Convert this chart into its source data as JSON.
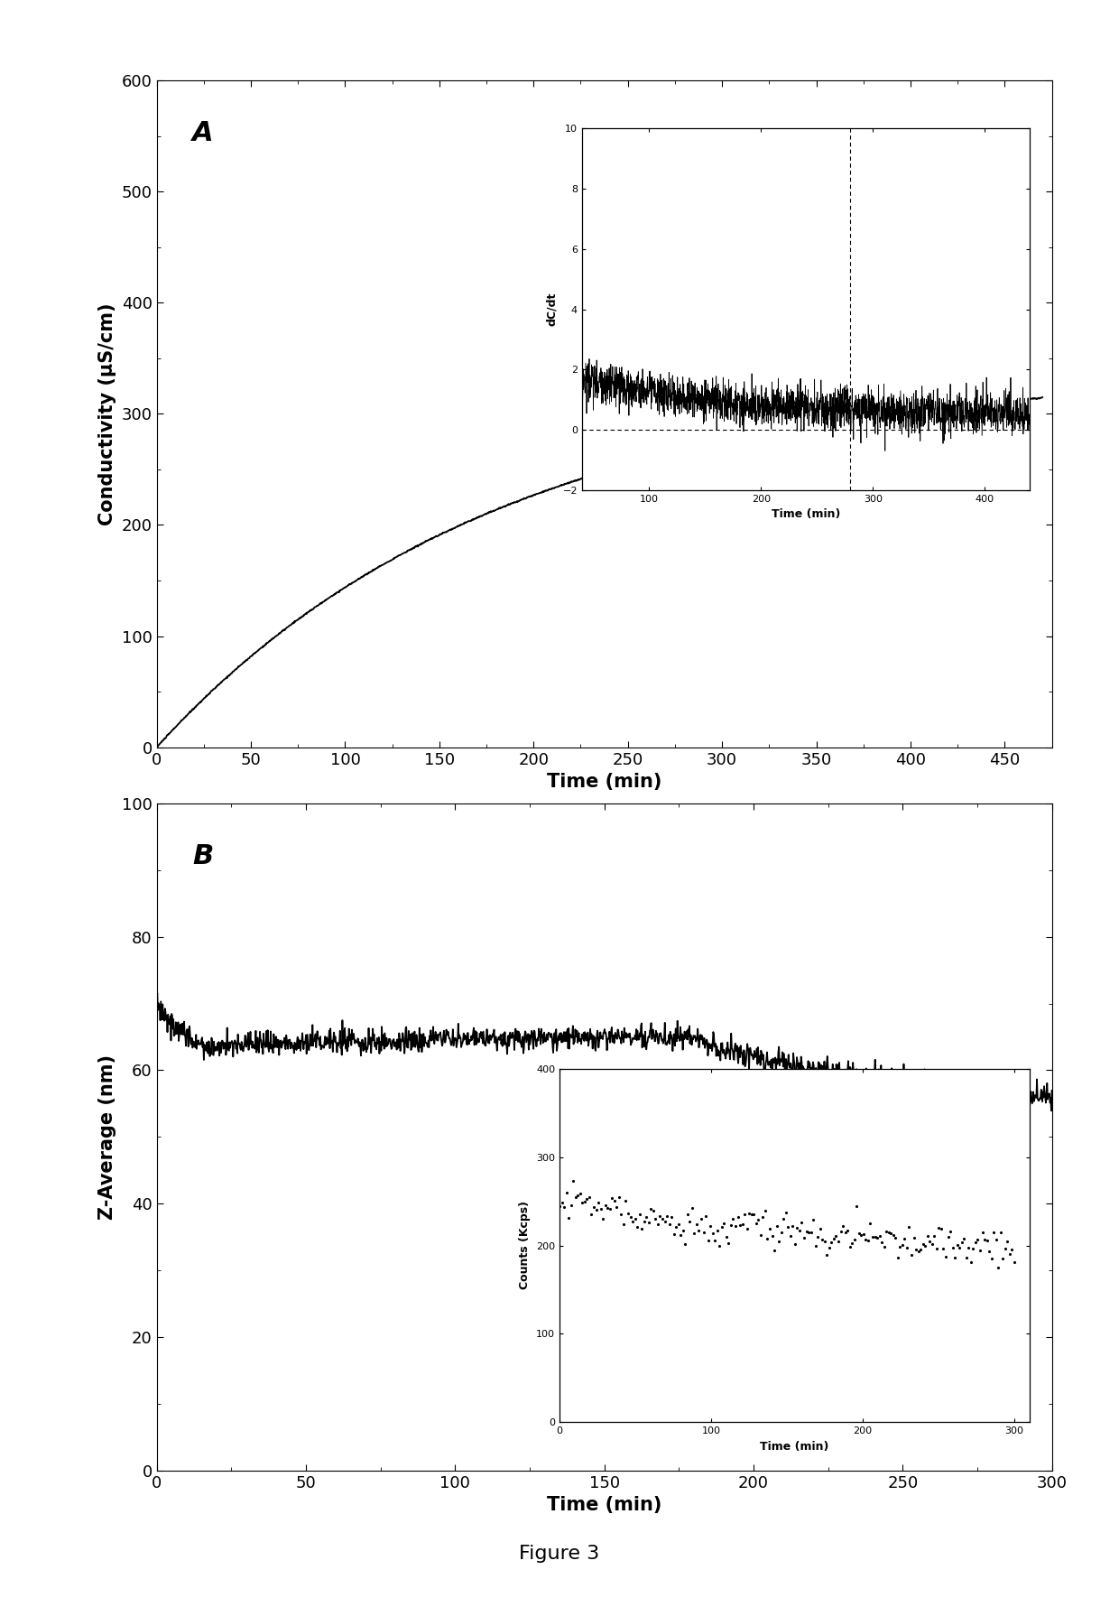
{
  "fig_width": 12.4,
  "fig_height": 17.8,
  "dpi": 100,
  "background_color": "#ffffff",
  "panel_A": {
    "label": "A",
    "xlabel": "Time (min)",
    "ylabel": "Conductivity (μS/cm)",
    "xlim": [
      0,
      475
    ],
    "ylim": [
      0,
      600
    ],
    "xticks": [
      0,
      50,
      100,
      150,
      200,
      250,
      300,
      350,
      400,
      450
    ],
    "yticks": [
      0,
      100,
      200,
      300,
      400,
      500,
      600
    ],
    "main_curve": {
      "x_start": 0,
      "x_end": 470,
      "n_points": 2000,
      "a": 340,
      "b": 0.0055,
      "noise_scale": 0.3
    },
    "inset": {
      "xlabel": "Time (min)",
      "ylabel": "dC/dt",
      "xlim": [
        40,
        440
      ],
      "ylim": [
        -2,
        10
      ],
      "xticks": [
        100,
        200,
        300,
        400
      ],
      "yticks": [
        -2,
        0,
        2,
        4,
        6,
        8,
        10
      ],
      "dashed_y": 0,
      "vline_x": 280,
      "curve": {
        "x_start": 40,
        "x_end": 440,
        "n_points": 2000,
        "decay_a": 1.2,
        "decay_b": 0.008,
        "noise_scale": 0.35
      }
    }
  },
  "panel_B": {
    "label": "B",
    "xlabel": "Time (min)",
    "ylabel": "Z-Average (nm)",
    "xlim": [
      0,
      300
    ],
    "ylim": [
      0,
      100
    ],
    "xticks": [
      0,
      50,
      100,
      150,
      200,
      250,
      300
    ],
    "yticks": [
      0,
      20,
      40,
      60,
      80,
      100
    ],
    "main_curve": {
      "x_start": 0,
      "x_end": 300,
      "n_points": 1500,
      "start_val": 71,
      "mid_val": 65,
      "end_val": 56,
      "noise_scale": 0.9
    },
    "inset": {
      "xlabel": "Time (min)",
      "ylabel": "Counts (Kcps)",
      "xlim": [
        0,
        310
      ],
      "ylim": [
        0,
        400
      ],
      "xticks": [
        0,
        100,
        200,
        300
      ],
      "yticks": [
        0,
        100,
        200,
        300,
        400
      ],
      "curve": {
        "x_start": 0,
        "x_end": 300,
        "n_points": 200,
        "start_val": 250,
        "plateau_val": 230,
        "end_val": 195,
        "noise_scale": 10
      }
    }
  },
  "figure_label": "Figure 3",
  "line_color": "#000000",
  "line_width": 1.3,
  "tick_fontsize": 13,
  "label_fontsize": 15,
  "panel_label_fontsize": 22,
  "figure_label_fontsize": 16
}
